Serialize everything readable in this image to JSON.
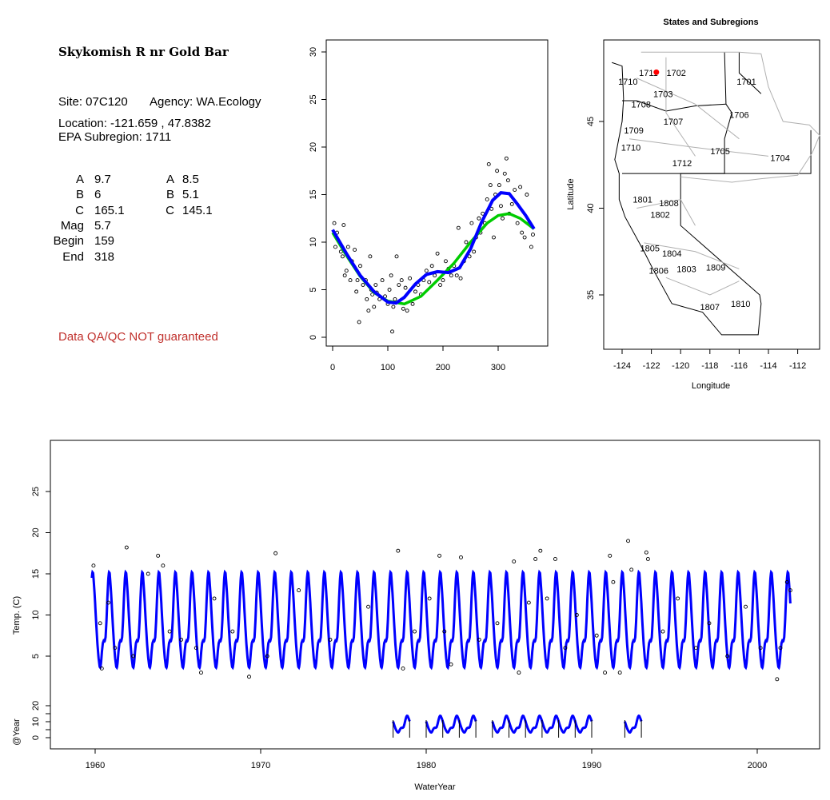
{
  "info": {
    "title": "Skykomish R nr Gold Bar",
    "site": "Site: 07C120",
    "agency": "Agency: WA.Ecology",
    "location": "Location: -121.659 , 47.8382",
    "subregion": "EPA Subregion: 1711",
    "params_left": [
      [
        "A",
        "9.7"
      ],
      [
        "B",
        "6"
      ],
      [
        "C",
        "165.1"
      ],
      [
        "Mag",
        "5.7"
      ],
      [
        "Begin",
        "159"
      ],
      [
        "End",
        "318"
      ]
    ],
    "params_right": [
      [
        "A",
        "8.5"
      ],
      [
        "B",
        "5.1"
      ],
      [
        "C",
        "145.1"
      ]
    ],
    "warning": "Data QA/QC NOT guaranteed"
  },
  "colors": {
    "fit_blue": "#0000ff",
    "fit_green": "#00cc00",
    "site": "#ff0000",
    "warn": "#c0302c",
    "boundary": "#b0b0b0"
  },
  "chart_data": [
    {
      "type": "scatter",
      "name": "seasonal",
      "xlim": [
        -5,
        370
      ],
      "ylim": [
        -1,
        31
      ],
      "xticks": [
        0,
        100,
        200,
        300
      ],
      "yticks": [
        0,
        5,
        10,
        15,
        20,
        25,
        30
      ],
      "series": [
        {
          "name": "blue fit",
          "x": [
            0,
            25,
            50,
            75,
            100,
            115,
            130,
            150,
            170,
            190,
            210,
            230,
            250,
            270,
            290,
            305,
            320,
            335,
            350,
            365
          ],
          "y": [
            11.3,
            8.8,
            6.5,
            4.8,
            3.7,
            3.6,
            4.2,
            5.6,
            6.6,
            6.9,
            6.8,
            7.3,
            9.3,
            12.1,
            14.4,
            15.2,
            15.1,
            14.0,
            12.8,
            11.4
          ]
        },
        {
          "name": "green fit",
          "x": [
            0,
            25,
            50,
            75,
            100,
            130,
            160,
            190,
            220,
            250,
            280,
            300,
            320,
            340,
            365
          ],
          "y": [
            11,
            8.6,
            6.4,
            4.7,
            3.8,
            3.5,
            4.3,
            6.0,
            7.8,
            10.0,
            12.0,
            12.8,
            13.0,
            12.5,
            11.4
          ]
        }
      ],
      "points": [
        [
          3,
          12
        ],
        [
          5,
          9.5
        ],
        [
          8,
          11
        ],
        [
          12,
          10
        ],
        [
          15,
          9
        ],
        [
          18,
          8.5
        ],
        [
          20,
          11.8
        ],
        [
          22,
          6.5
        ],
        [
          25,
          7
        ],
        [
          28,
          9.5
        ],
        [
          32,
          6
        ],
        [
          35,
          8
        ],
        [
          40,
          9.2
        ],
        [
          43,
          4.8
        ],
        [
          45,
          6
        ],
        [
          48,
          1.6
        ],
        [
          50,
          7.5
        ],
        [
          55,
          5.5
        ],
        [
          60,
          6
        ],
        [
          62,
          4
        ],
        [
          65,
          2.8
        ],
        [
          68,
          8.5
        ],
        [
          70,
          5
        ],
        [
          72,
          4.5
        ],
        [
          75,
          3.2
        ],
        [
          78,
          5.5
        ],
        [
          80,
          4.7
        ],
        [
          85,
          4
        ],
        [
          90,
          6
        ],
        [
          95,
          4.3
        ],
        [
          100,
          3.5
        ],
        [
          103,
          5
        ],
        [
          106,
          6.5
        ],
        [
          108,
          0.6
        ],
        [
          110,
          3.2
        ],
        [
          113,
          4
        ],
        [
          116,
          8.5
        ],
        [
          120,
          5.5
        ],
        [
          125,
          6
        ],
        [
          128,
          3
        ],
        [
          132,
          5.2
        ],
        [
          135,
          2.8
        ],
        [
          140,
          6.2
        ],
        [
          145,
          3.5
        ],
        [
          150,
          4.8
        ],
        [
          155,
          5.5
        ],
        [
          160,
          4.5
        ],
        [
          165,
          6
        ],
        [
          170,
          7
        ],
        [
          175,
          5.8
        ],
        [
          180,
          7.5
        ],
        [
          185,
          6.5
        ],
        [
          190,
          8.8
        ],
        [
          195,
          5.5
        ],
        [
          200,
          6
        ],
        [
          205,
          8
        ],
        [
          210,
          7.2
        ],
        [
          215,
          6.5
        ],
        [
          220,
          7.5
        ],
        [
          225,
          6.5
        ],
        [
          228,
          11.5
        ],
        [
          232,
          6.2
        ],
        [
          238,
          8
        ],
        [
          242,
          10
        ],
        [
          248,
          8.5
        ],
        [
          252,
          12
        ],
        [
          256,
          9
        ],
        [
          260,
          10.5
        ],
        [
          265,
          12.5
        ],
        [
          268,
          11
        ],
        [
          272,
          13
        ],
        [
          276,
          12
        ],
        [
          280,
          14.5
        ],
        [
          283,
          18.2
        ],
        [
          286,
          16
        ],
        [
          288,
          13.5
        ],
        [
          292,
          10.5
        ],
        [
          295,
          15
        ],
        [
          298,
          17.5
        ],
        [
          302,
          16
        ],
        [
          305,
          13.8
        ],
        [
          308,
          12.5
        ],
        [
          312,
          17.2
        ],
        [
          315,
          18.8
        ],
        [
          318,
          16.5
        ],
        [
          320,
          13
        ],
        [
          325,
          14
        ],
        [
          330,
          15.5
        ],
        [
          335,
          12
        ],
        [
          340,
          15.8
        ],
        [
          343,
          11
        ],
        [
          348,
          10.5
        ],
        [
          352,
          15
        ],
        [
          356,
          12
        ],
        [
          360,
          9.5
        ],
        [
          363,
          10.8
        ]
      ]
    },
    {
      "type": "map",
      "name": "States and Subregions",
      "title": "States and Subregions",
      "xlabel": "Longitude",
      "ylabel": "Latitude",
      "xticks": [
        -124,
        -122,
        -120,
        -118,
        -116,
        -114,
        -112
      ],
      "yticks": [
        35,
        40,
        45
      ],
      "site": [
        -121.659,
        47.8382
      ],
      "labels": [
        [
          "1711",
          -122.2,
          47.8
        ],
        [
          "1702",
          -120.3,
          47.8
        ],
        [
          "1701",
          -115.5,
          47.3
        ],
        [
          "1710",
          -123.6,
          47.3
        ],
        [
          "1703",
          -121.2,
          46.6
        ],
        [
          "1708",
          -122.7,
          46
        ],
        [
          "1706",
          -116,
          45.4
        ],
        [
          "1707",
          -120.5,
          45
        ],
        [
          "1709",
          -123.2,
          44.5
        ],
        [
          "1710",
          -123.4,
          43.5
        ],
        [
          "1705",
          -117.3,
          43.3
        ],
        [
          "1704",
          -113.2,
          42.9
        ],
        [
          "1712",
          -119.9,
          42.6
        ],
        [
          "1801",
          -122.6,
          40.5
        ],
        [
          "1808",
          -120.8,
          40.3
        ],
        [
          "1802",
          -121.4,
          40.1
        ],
        [
          "1805",
          -122.1,
          37.7
        ],
        [
          "1804",
          -120.6,
          37.4
        ],
        [
          "1806",
          -121.5,
          36.4
        ],
        [
          "1803",
          -119.6,
          36.5
        ],
        [
          "1809",
          -117.6,
          36.6
        ],
        [
          "1807",
          -118,
          34.3
        ],
        [
          "1810",
          -115.9,
          34.5
        ]
      ]
    },
    {
      "type": "line",
      "name": "time series",
      "xlabel": "WaterYear",
      "ylabel": "Temp. (C)",
      "ylabel2": "@Year",
      "xticks": [
        1960,
        1970,
        1980,
        1990,
        2000
      ],
      "yticks": [
        5,
        10,
        15,
        20,
        25
      ],
      "yticks2": [
        0,
        10,
        20
      ],
      "fit_range": [
        1959.8,
        2002.0
      ],
      "year_segments": [
        [
          1978,
          1979
        ],
        [
          1980,
          1983
        ],
        [
          1984,
          1990
        ],
        [
          1992,
          1993
        ]
      ],
      "points": [
        [
          1959.9,
          16
        ],
        [
          1960.3,
          9
        ],
        [
          1960.4,
          3.5
        ],
        [
          1960.8,
          11.5
        ],
        [
          1961.2,
          6
        ],
        [
          1961.9,
          18.2
        ],
        [
          1962.3,
          5
        ],
        [
          1963.2,
          15
        ],
        [
          1963.8,
          17.2
        ],
        [
          1964.1,
          16
        ],
        [
          1964.5,
          8
        ],
        [
          1965.2,
          7
        ],
        [
          1966.1,
          6
        ],
        [
          1966.4,
          3
        ],
        [
          1967.2,
          12
        ],
        [
          1968.3,
          8
        ],
        [
          1969.3,
          2.5
        ],
        [
          1970.4,
          5
        ],
        [
          1970.9,
          17.5
        ],
        [
          1972.3,
          13
        ],
        [
          1974.2,
          7
        ],
        [
          1976.5,
          11
        ],
        [
          1978.3,
          17.8
        ],
        [
          1978.6,
          3.5
        ],
        [
          1979.3,
          8
        ],
        [
          1980.2,
          12
        ],
        [
          1980.8,
          17.2
        ],
        [
          1981.1,
          8
        ],
        [
          1981.5,
          4
        ],
        [
          1982.1,
          17
        ],
        [
          1983.2,
          7
        ],
        [
          1984.3,
          9
        ],
        [
          1985.3,
          16.5
        ],
        [
          1985.6,
          3
        ],
        [
          1986.2,
          11.5
        ],
        [
          1986.6,
          16.8
        ],
        [
          1986.9,
          17.8
        ],
        [
          1987.3,
          12
        ],
        [
          1987.8,
          16.8
        ],
        [
          1988.4,
          6
        ],
        [
          1989.1,
          10
        ],
        [
          1990.3,
          7.5
        ],
        [
          1990.8,
          3
        ],
        [
          1991.1,
          17.2
        ],
        [
          1991.3,
          14
        ],
        [
          1991.7,
          3
        ],
        [
          1992.2,
          19
        ],
        [
          1992.4,
          15.5
        ],
        [
          1993.3,
          17.6
        ],
        [
          1993.4,
          16.8
        ],
        [
          1994.3,
          8
        ],
        [
          1995.2,
          12
        ],
        [
          1996.3,
          6
        ],
        [
          1997.1,
          9
        ],
        [
          1998.2,
          5
        ],
        [
          1999.3,
          11
        ],
        [
          2000.2,
          6
        ],
        [
          2001.2,
          2.2
        ],
        [
          2001.4,
          6
        ],
        [
          2001.8,
          14
        ],
        [
          2002,
          13
        ]
      ]
    }
  ]
}
